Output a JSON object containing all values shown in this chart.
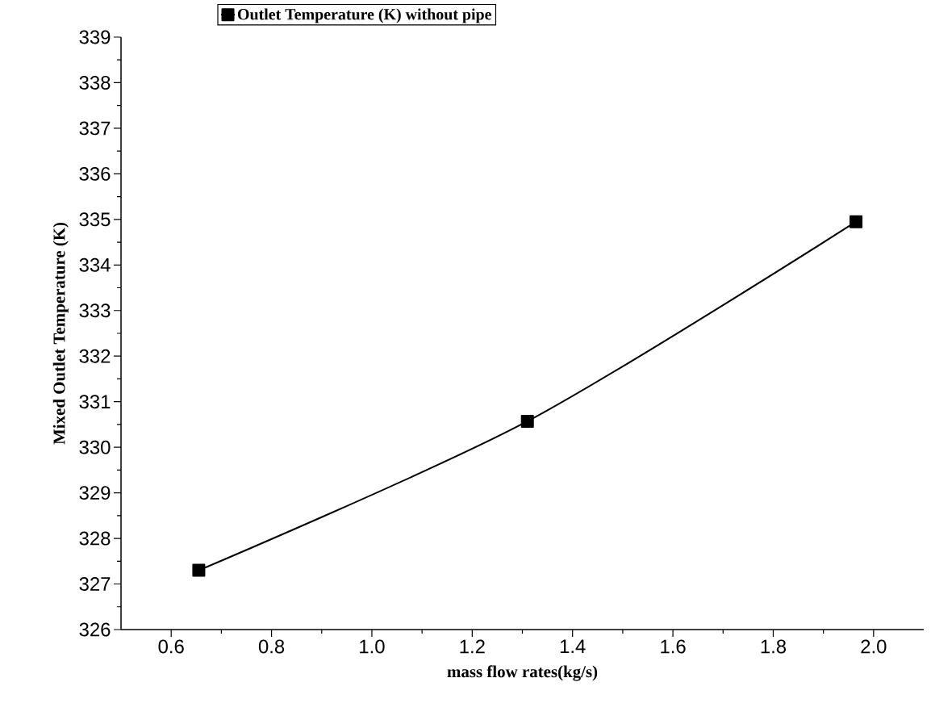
{
  "chart_data": {
    "type": "line",
    "xlabel": "mass flow rates(kg/s)",
    "ylabel": "Mixed Outlet Temperature (K)",
    "x": [
      0.655,
      1.31,
      1.965
    ],
    "series": [
      {
        "name": "Outlet Temperature (K) without pipe",
        "color": "#000000",
        "values": [
          327.3,
          330.57,
          334.95
        ]
      }
    ],
    "xlim": [
      0.5,
      2.1
    ],
    "ylim": [
      326,
      339
    ],
    "xticks": [
      0.6,
      0.8,
      {
        "value": 1.0,
        "label": "1.0"
      },
      1.2,
      1.4,
      1.6,
      1.8,
      {
        "value": 2.0,
        "label": "2.0"
      }
    ],
    "yticks": [
      326,
      327,
      328,
      329,
      330,
      331,
      332,
      333,
      334,
      335,
      336,
      337,
      338,
      339
    ],
    "marker": "square",
    "line_style": "solid",
    "legend": "top"
  }
}
